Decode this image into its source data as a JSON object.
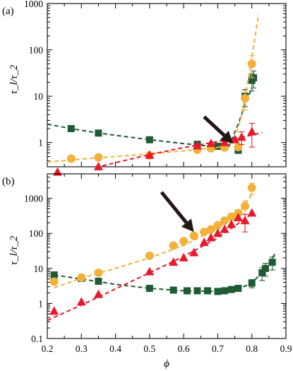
{
  "colors": {
    "green": "#1e5a34",
    "orange": "#f2b13a",
    "red": "#e8192c",
    "arrow": "#231815"
  },
  "chart_data": [
    {
      "type": "scatter",
      "panel_label": "(a)",
      "ylabel": "τ_l/τ_2",
      "xlim": [
        0.2,
        0.9
      ],
      "ylim": [
        0.3,
        1000
      ],
      "yscale": "log",
      "y_ticks": [
        "1",
        "10",
        "100",
        "1000"
      ],
      "y_tick_values": [
        1,
        10,
        100,
        1000
      ],
      "x_ticks_shown": false,
      "annotations": [
        {
          "type": "arrow",
          "from": [
            0.66,
            3.6
          ],
          "to": [
            0.745,
            0.95
          ]
        }
      ],
      "series": [
        {
          "marker": "square",
          "color": "green",
          "x": [
            0.27,
            0.35,
            0.5,
            0.64,
            0.7,
            0.76,
            0.78,
            0.8,
            0.805
          ],
          "y": [
            2.0,
            1.6,
            1.15,
            0.92,
            0.83,
            0.68,
            10,
            22,
            25
          ],
          "err": [
            0,
            0,
            0,
            0,
            0,
            0,
            4,
            9,
            10
          ],
          "fit": {
            "x": [
              0.2,
              0.27,
              0.35,
              0.5,
              0.6,
              0.68,
              0.73,
              0.76,
              0.78,
              0.8
            ],
            "y": [
              2.5,
              2.0,
              1.6,
              1.15,
              0.95,
              0.83,
              0.75,
              2.5,
              6.5,
              15
            ]
          }
        },
        {
          "marker": "circle",
          "color": "orange",
          "x": [
            0.27,
            0.35,
            0.5,
            0.64,
            0.68,
            0.72,
            0.76,
            0.78,
            0.8
          ],
          "y": [
            0.45,
            0.48,
            0.53,
            0.7,
            0.75,
            0.78,
            0.8,
            9,
            50
          ],
          "err": [
            0,
            0,
            0,
            0,
            0,
            0,
            0,
            4,
            25
          ],
          "fit": {
            "x": [
              0.2,
              0.3,
              0.4,
              0.5,
              0.6,
              0.7,
              0.75,
              0.77,
              0.79,
              0.81,
              0.82
            ],
            "y": [
              0.38,
              0.44,
              0.5,
              0.57,
              0.66,
              0.78,
              1.1,
              4,
              25,
              200,
              600
            ]
          }
        },
        {
          "marker": "triangle",
          "color": "red",
          "x": [
            0.23,
            0.35,
            0.5,
            0.64,
            0.68,
            0.72,
            0.75,
            0.77,
            0.8
          ],
          "y": [
            0.23,
            0.3,
            0.53,
            0.85,
            0.95,
            1.0,
            1.15,
            1.3,
            1.7
          ],
          "err": [
            0,
            0,
            0,
            0,
            0,
            0,
            0,
            0.4,
            0.9
          ],
          "fit": {
            "x": [
              0.2,
              0.35,
              0.5,
              0.6,
              0.7,
              0.75,
              0.8,
              0.83
            ],
            "y": [
              0.17,
              0.3,
              0.55,
              0.78,
              1.05,
              1.2,
              1.45,
              1.65
            ]
          }
        }
      ]
    },
    {
      "type": "scatter",
      "panel_label": "(b)",
      "ylabel": "τ_l/τ_2",
      "xlabel": "ϕ",
      "xlim": [
        0.2,
        0.9
      ],
      "ylim": [
        0.1,
        5000
      ],
      "yscale": "log",
      "x_ticks": [
        "0.2",
        "0.3",
        "0.4",
        "0.5",
        "0.6",
        "0.7",
        "0.8",
        "0.9"
      ],
      "x_tick_values": [
        0.2,
        0.3,
        0.4,
        0.5,
        0.6,
        0.7,
        0.8,
        0.9
      ],
      "y_ticks": [
        "0.1",
        "1",
        "10",
        "100",
        "1000"
      ],
      "y_tick_values": [
        0.1,
        1,
        10,
        100,
        1000
      ],
      "annotations": [
        {
          "type": "arrow",
          "from": [
            0.535,
            1500
          ],
          "to": [
            0.63,
            110
          ]
        }
      ],
      "series": [
        {
          "marker": "square",
          "color": "green",
          "x": [
            0.22,
            0.3,
            0.35,
            0.5,
            0.57,
            0.61,
            0.64,
            0.67,
            0.7,
            0.72,
            0.74,
            0.76,
            0.8,
            0.83,
            0.84,
            0.86
          ],
          "y": [
            6.5,
            5.2,
            4.3,
            2.7,
            2.4,
            2.3,
            2.3,
            2.3,
            2.2,
            2.3,
            2.5,
            2.7,
            3.8,
            7.5,
            10,
            15
          ],
          "err": [
            0,
            0,
            0,
            0,
            0,
            0,
            0,
            0,
            0,
            0,
            0,
            0,
            1,
            3,
            4,
            6
          ],
          "fit": {
            "x": [
              0.22,
              0.3,
              0.4,
              0.5,
              0.6,
              0.7,
              0.76,
              0.8,
              0.84,
              0.87
            ],
            "y": [
              6.5,
              5,
              3.5,
              2.7,
              2.3,
              2.2,
              2.6,
              3.8,
              10,
              28
            ]
          }
        },
        {
          "marker": "circle",
          "color": "orange",
          "x": [
            0.22,
            0.3,
            0.35,
            0.5,
            0.57,
            0.6,
            0.63,
            0.66,
            0.68,
            0.7,
            0.72,
            0.74,
            0.76,
            0.78,
            0.8
          ],
          "y": [
            4.2,
            5.5,
            7.5,
            23,
            45,
            60,
            85,
            110,
            130,
            170,
            230,
            300,
            380,
            600,
            2000
          ],
          "err": [
            0,
            0,
            0,
            0,
            0,
            0,
            0,
            0,
            0,
            0,
            0,
            0,
            0,
            250,
            700
          ],
          "fit": {
            "x": [
              0.22,
              0.3,
              0.4,
              0.5,
              0.6,
              0.7,
              0.76,
              0.8
            ],
            "y": [
              2.8,
              5.3,
              10,
              20,
              45,
              140,
              360,
              1300
            ]
          }
        },
        {
          "marker": "triangle",
          "color": "red",
          "x": [
            0.22,
            0.3,
            0.35,
            0.5,
            0.57,
            0.6,
            0.63,
            0.66,
            0.68,
            0.7,
            0.72,
            0.74,
            0.76,
            0.78,
            0.8
          ],
          "y": [
            0.6,
            1.1,
            1.8,
            8,
            15,
            20,
            28,
            55,
            75,
            100,
            130,
            180,
            280,
            230,
            380
          ],
          "err": [
            0,
            0,
            0,
            0,
            0,
            0,
            0,
            0,
            0,
            0,
            0,
            0,
            0,
            120,
            0
          ],
          "fit": {
            "x": [
              0.2,
              0.3,
              0.4,
              0.5,
              0.6,
              0.7,
              0.8
            ],
            "y": [
              0.33,
              0.9,
              2.6,
              7.5,
              22,
              75,
              360
            ]
          }
        }
      ]
    }
  ]
}
